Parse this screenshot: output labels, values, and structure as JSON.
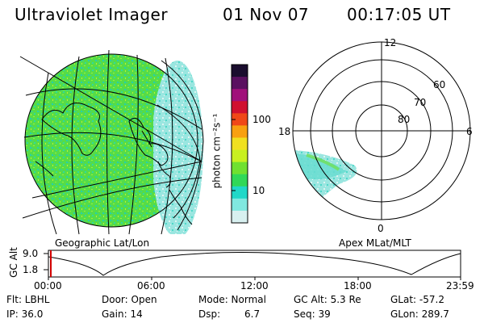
{
  "header": {
    "instrument": "Ultraviolet Imager",
    "date": "01 Nov 07",
    "time": "00:17:05 UT"
  },
  "colorbar": {
    "unit_label": "photon cm⁻²s⁻¹",
    "ticks": [
      "100",
      "10"
    ],
    "colors": [
      "#1a0d2e",
      "#5a1060",
      "#a0107a",
      "#d01030",
      "#f04818",
      "#f8a010",
      "#f0e020",
      "#c8f020",
      "#70e030",
      "#30d858",
      "#20d8c8",
      "#80e8e0",
      "#d8f0f0"
    ]
  },
  "panels": {
    "geographic_label": "Geographic Lat/Lon",
    "apex_label": "Apex MLat/MLT"
  },
  "polar": {
    "mlt_labels": {
      "top": "12",
      "left": "18",
      "right": "6",
      "bottom": "0"
    },
    "lat_labels": [
      "60",
      "70",
      "80"
    ]
  },
  "altitude_plot": {
    "ylabel": "GC Alt",
    "yticks": [
      "9.0",
      "1.8"
    ],
    "xticks": [
      "00:00",
      "06:00",
      "12:00",
      "18:00",
      "23:59"
    ]
  },
  "info": {
    "flt": "Flt: LBHL",
    "ip": "IP: 36.0",
    "door": "Door: Open",
    "gain": "Gain: 14",
    "mode": "Mode: Normal",
    "dsp_label": "Dsp:",
    "dsp_value": "6.7",
    "gc_alt": "GC Alt: 5.3 Re",
    "seq": "Seq: 39",
    "glat": "GLat: -57.2",
    "glon": "GLon: 289.7"
  }
}
